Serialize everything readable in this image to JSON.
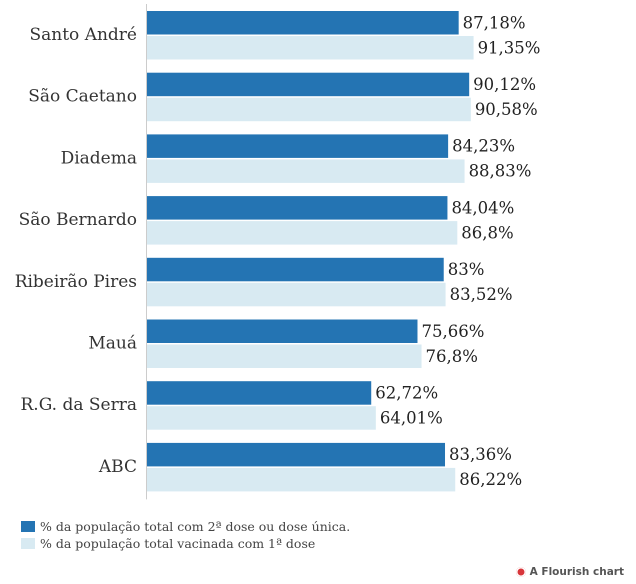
{
  "chart_data": {
    "type": "bar",
    "orientation": "horizontal",
    "categories": [
      "Santo André",
      "São Caetano",
      "Diadema",
      "São Bernardo",
      "Ribeirão Pires",
      "Mauá",
      "R.G. da Serra",
      "ABC"
    ],
    "series": [
      {
        "name": "% da população total com 2ª dose ou dose única.",
        "color": "#2474b3",
        "values": [
          87.18,
          90.12,
          84.23,
          84.04,
          83,
          75.66,
          62.72,
          83.36
        ],
        "labels": [
          "87,18%",
          "90,12%",
          "84,23%",
          "84,04%",
          "83%",
          "75,66%",
          "62,72%",
          "83,36%"
        ]
      },
      {
        "name": "% da população total vacinada com 1ª dose",
        "color": "#d8eaf2",
        "values": [
          91.35,
          90.58,
          88.83,
          86.8,
          83.52,
          76.8,
          64.01,
          86.22
        ],
        "labels": [
          "91,35%",
          "90,58%",
          "88,83%",
          "86,8%",
          "83,52%",
          "76,8%",
          "64,01%",
          "86,22%"
        ]
      }
    ],
    "xlim": [
      0,
      100
    ],
    "legend_position": "bottom-left"
  },
  "footer": {
    "credit": "A Flourish chart",
    "icon": "flourish-logo-icon"
  }
}
